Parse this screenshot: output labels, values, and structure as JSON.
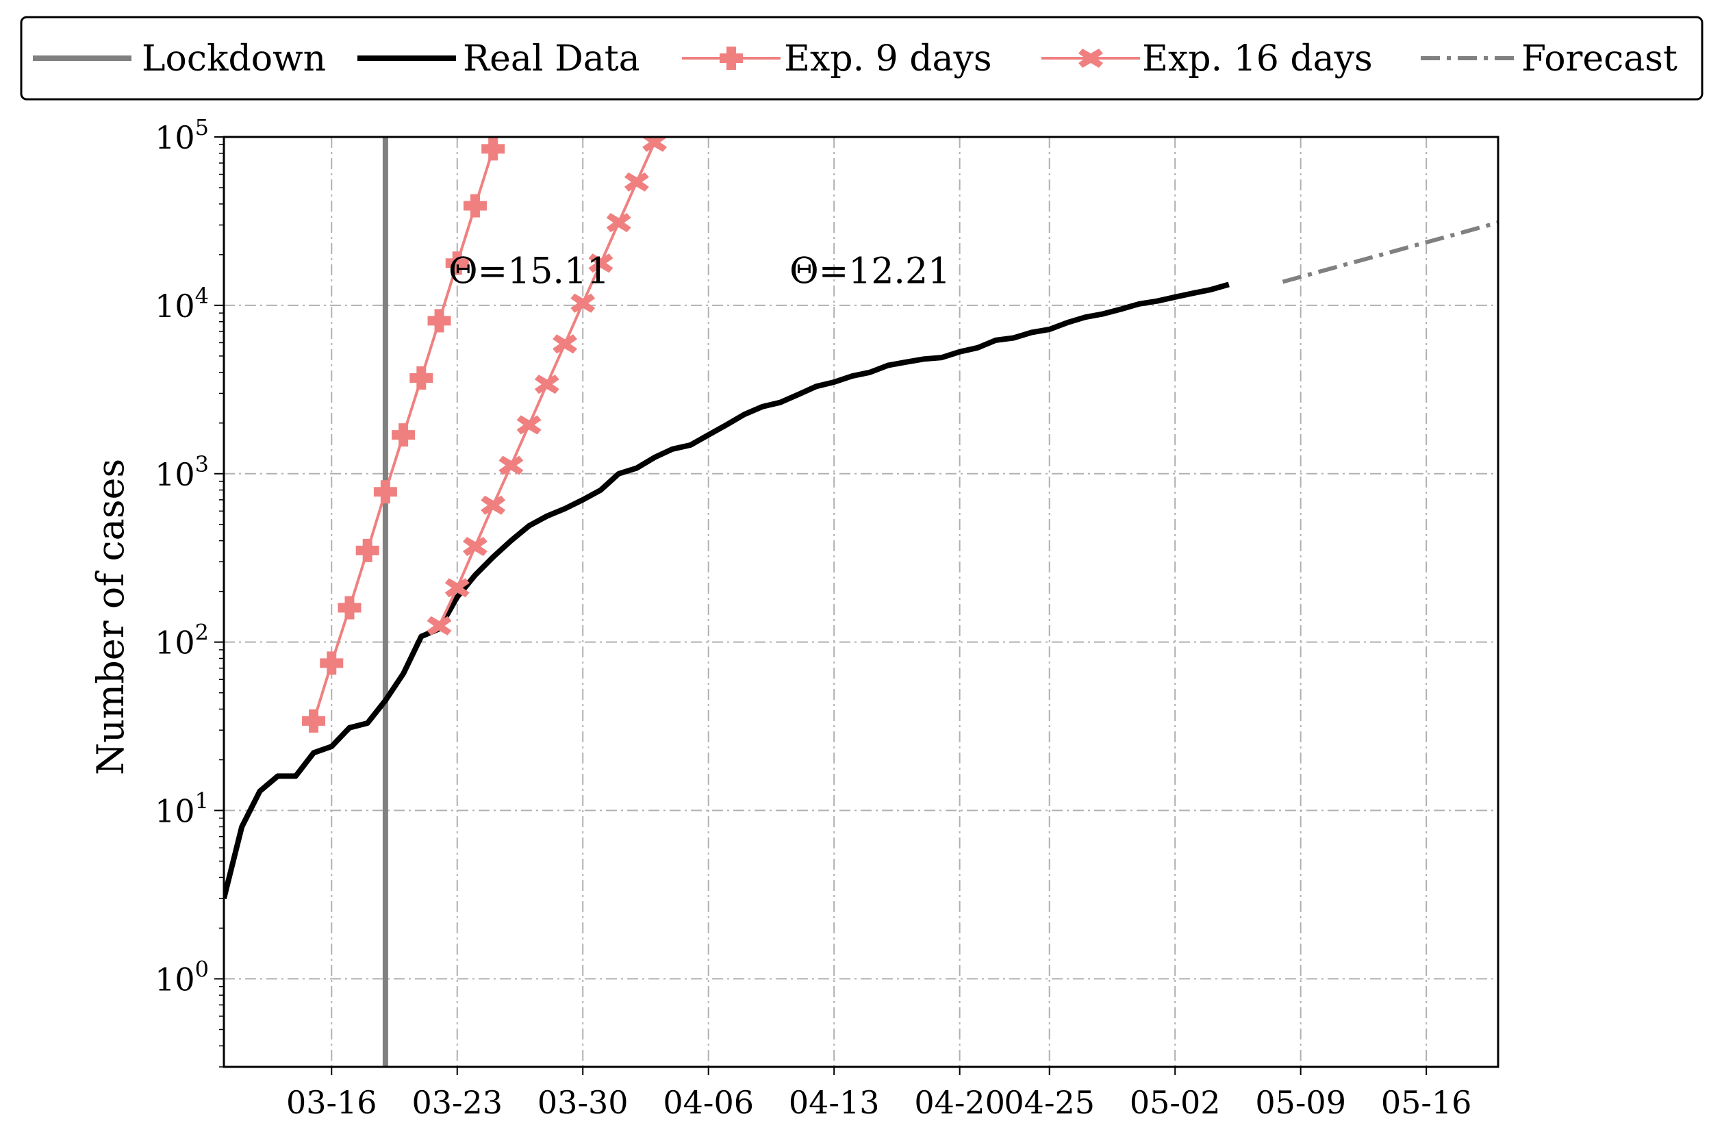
{
  "chart_data": {
    "type": "line",
    "title": "",
    "xlabel": "",
    "ylabel": "Number of cases",
    "yscale": "log",
    "ylim": [
      0.3,
      100000
    ],
    "xlim": [
      "2020-03-10",
      "2020-05-20"
    ],
    "grid": true,
    "legend_position": "top, outside plot",
    "x_ticks": [
      "03-16",
      "03-23",
      "03-30",
      "04-06",
      "04-13",
      "04-20",
      "04-25",
      "05-02",
      "05-09",
      "05-16"
    ],
    "x_tick_dates": [
      "2020-03-16",
      "2020-03-23",
      "2020-03-30",
      "2020-04-06",
      "2020-04-13",
      "2020-04-20",
      "2020-04-25",
      "2020-05-02",
      "2020-05-09",
      "2020-05-16"
    ],
    "y_ticks": [
      {
        "base": "10",
        "exp": "0",
        "value": 1
      },
      {
        "base": "10",
        "exp": "1",
        "value": 10
      },
      {
        "base": "10",
        "exp": "2",
        "value": 100
      },
      {
        "base": "10",
        "exp": "3",
        "value": 1000
      },
      {
        "base": "10",
        "exp": "4",
        "value": 10000
      },
      {
        "base": "10",
        "exp": "5",
        "value": 100000
      }
    ],
    "legend": [
      {
        "label": "Lockdown",
        "style": "solid",
        "color": "#808080",
        "marker": "none"
      },
      {
        "label": "Real Data",
        "style": "solid",
        "color": "#000000",
        "marker": "none"
      },
      {
        "label": "Exp. 9 days",
        "style": "solid",
        "color": "#f08080",
        "marker": "plus"
      },
      {
        "label": "Exp. 16 days",
        "style": "solid",
        "color": "#f08080",
        "marker": "x"
      },
      {
        "label": "Forecast",
        "style": "dashdot",
        "color": "#808080",
        "marker": "none"
      }
    ],
    "lockdown": {
      "x": "2020-03-19"
    },
    "annotations": [
      {
        "text": "Θ=15.11",
        "x": "2020-03-27",
        "y": 16000
      },
      {
        "text": "Θ=12.21",
        "x": "2020-04-15",
        "y": 16000
      }
    ],
    "series": [
      {
        "name": "Real Data",
        "color": "#000000",
        "start": "2020-03-10",
        "values": [
          3,
          8,
          13,
          16,
          16,
          22,
          24,
          31,
          33,
          45,
          65,
          108,
          120,
          185,
          250,
          320,
          400,
          490,
          560,
          620,
          700,
          800,
          1000,
          1080,
          1250,
          1400,
          1480,
          1700,
          1950,
          2250,
          2500,
          2650,
          2950,
          3300,
          3500,
          3800,
          4000,
          4400,
          4600,
          4800,
          4900,
          5300,
          5600,
          6200,
          6400,
          6900,
          7200,
          7900,
          8500,
          8900,
          9500,
          10200,
          10600,
          11200,
          11800,
          12400,
          13300
        ]
      },
      {
        "name": "Exp. 9 days",
        "color": "#f08080",
        "start": "2020-03-15",
        "values": [
          34,
          75,
          160,
          350,
          780,
          1700,
          3700,
          8100,
          17800,
          39000,
          85000
        ]
      },
      {
        "name": "Exp. 16 days",
        "color": "#f08080",
        "start": "2020-03-22",
        "values": [
          125,
          210,
          370,
          650,
          1120,
          1950,
          3400,
          5900,
          10300,
          17800,
          31000,
          54000,
          93000
        ]
      },
      {
        "name": "Forecast",
        "color": "#808080",
        "x": [
          "2020-05-08",
          "2020-05-20"
        ],
        "values": [
          13800,
          31000
        ]
      }
    ]
  }
}
